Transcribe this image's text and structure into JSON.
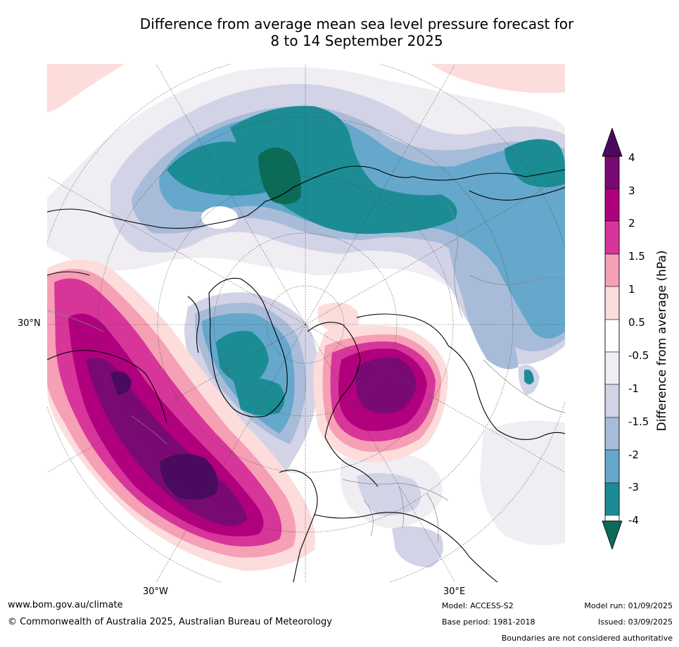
{
  "title": {
    "line1": "Difference from average mean sea level pressure forecast for",
    "line2": "8 to 14 September 2025"
  },
  "map": {
    "projection": "north-polar-stereographic",
    "lat_labels": [
      "30°N"
    ],
    "lon_labels": [
      "30°W",
      "30°E"
    ]
  },
  "colorbar": {
    "title": "Difference from average (hPa)",
    "tick_labels": [
      "4",
      "3",
      "2",
      "1.5",
      "1",
      "0.5",
      "-0.5",
      "-1",
      "-1.5",
      "-2",
      "-3",
      "-4"
    ],
    "colors": [
      "#4a0a5e",
      "#7a0a73",
      "#b0007d",
      "#d8359a",
      "#f5a0b5",
      "#fddcdc",
      "#ffffff",
      "#f0edf3",
      "#d2d3e6",
      "#a8bcd9",
      "#65a8cc",
      "#1c8c94",
      "#0b6b57"
    ]
  },
  "footer": {
    "website": "www.bom.gov.au/climate",
    "copyright": "© Commonwealth of Australia 2025, Australian Bureau of Meteorology",
    "model": "Model: ACCESS-S2",
    "base_period": "Base period: 1981-2018",
    "model_run": "Model run: 01/09/2025",
    "issued": "Issued: 03/09/2025",
    "disclaimer": "Boundaries are not considered authoritative"
  }
}
